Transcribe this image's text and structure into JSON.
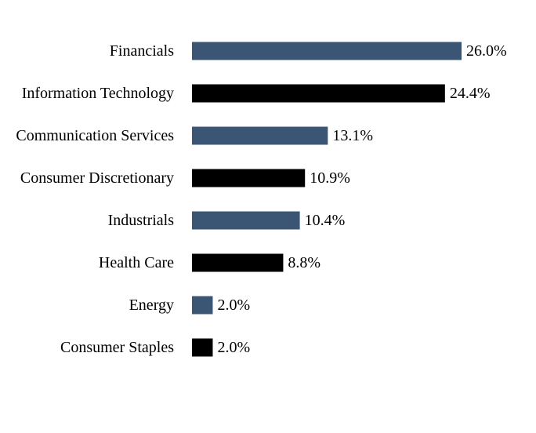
{
  "chart_data": {
    "type": "bar",
    "orientation": "horizontal",
    "categories": [
      "Financials",
      "Information Technology",
      "Communication Services",
      "Consumer Discretionary",
      "Industrials",
      "Health Care",
      "Energy",
      "Consumer Staples"
    ],
    "values": [
      26.0,
      24.4,
      13.1,
      10.9,
      10.4,
      8.8,
      2.0,
      2.0
    ],
    "value_labels": [
      "26.0%",
      "24.4%",
      "13.1%",
      "10.9%",
      "10.4%",
      "8.8%",
      "2.0%",
      "2.0%"
    ],
    "bar_colors": [
      "#3b5674",
      "#000000",
      "#3b5674",
      "#000000",
      "#3b5674",
      "#000000",
      "#3b5674",
      "#000000"
    ],
    "xlim": [
      0,
      26.0
    ],
    "grid": false,
    "legend": "none"
  }
}
